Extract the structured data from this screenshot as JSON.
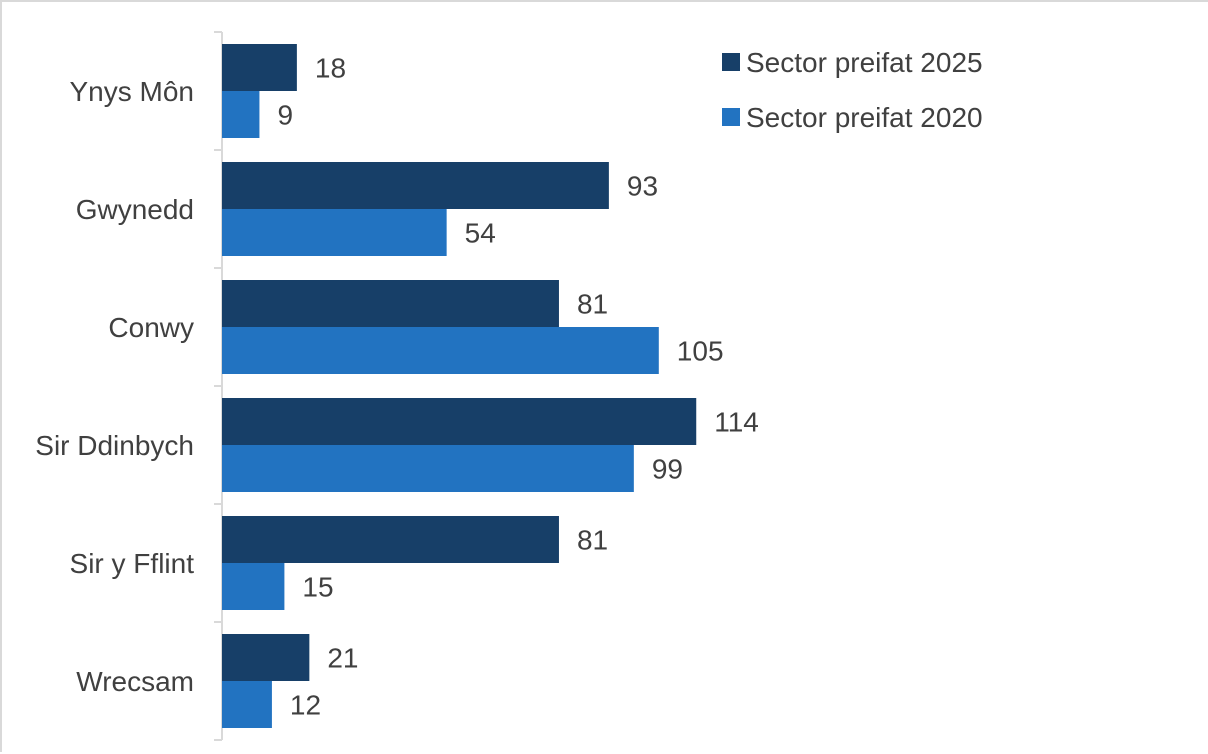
{
  "chart_data": {
    "type": "bar",
    "orientation": "horizontal",
    "categories": [
      "Ynys Môn",
      "Gwynedd",
      "Conwy",
      "Sir Ddinbych",
      "Sir y Fflint",
      "Wrecsam"
    ],
    "series": [
      {
        "name": "Sector preifat 2025",
        "color": "#173f68",
        "values": [
          18,
          93,
          81,
          114,
          81,
          21
        ]
      },
      {
        "name": "Sector preifat 2020",
        "color": "#2273c1",
        "values": [
          9,
          54,
          105,
          99,
          15,
          12
        ]
      }
    ],
    "xlim": [
      0,
      120
    ],
    "grid": false,
    "legend_position": "top-right",
    "data_labels": true
  }
}
